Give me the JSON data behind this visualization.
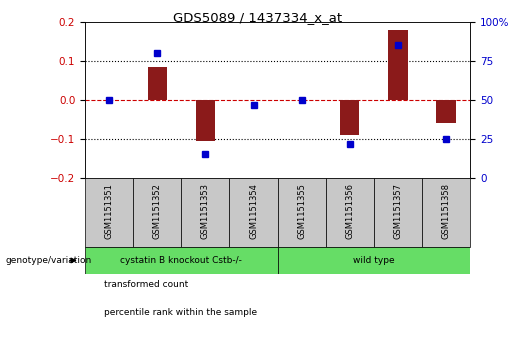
{
  "title": "GDS5089 / 1437334_x_at",
  "samples": [
    "GSM1151351",
    "GSM1151352",
    "GSM1151353",
    "GSM1151354",
    "GSM1151355",
    "GSM1151356",
    "GSM1151357",
    "GSM1151358"
  ],
  "transformed_count": [
    0.0,
    0.085,
    -0.105,
    0.0,
    0.0,
    -0.09,
    0.18,
    -0.06
  ],
  "percentile_rank": [
    50,
    80,
    15,
    47,
    50,
    22,
    85,
    25
  ],
  "ylim_left": [
    -0.2,
    0.2
  ],
  "ylim_right": [
    0,
    100
  ],
  "yticks_left": [
    -0.2,
    -0.1,
    0.0,
    0.1,
    0.2
  ],
  "yticks_right": [
    0,
    25,
    50,
    75,
    100
  ],
  "ytick_labels_right": [
    "0",
    "25",
    "50",
    "75",
    "100%"
  ],
  "group1_label": "cystatin B knockout Cstb-/-",
  "group2_label": "wild type",
  "group1_indices": [
    0,
    1,
    2,
    3
  ],
  "group2_indices": [
    4,
    5,
    6,
    7
  ],
  "group_color": "#66DD66",
  "bar_color": "#8B1A1A",
  "dot_color": "#0000CC",
  "hline_color": "#CC0000",
  "dotted_color": "#000000",
  "sample_box_color": "#C8C8C8",
  "bg_color": "#ffffff",
  "legend_items": [
    "transformed count",
    "percentile rank within the sample"
  ],
  "legend_colors": [
    "#8B1A1A",
    "#0000CC"
  ],
  "left_label": "genotype/variation"
}
